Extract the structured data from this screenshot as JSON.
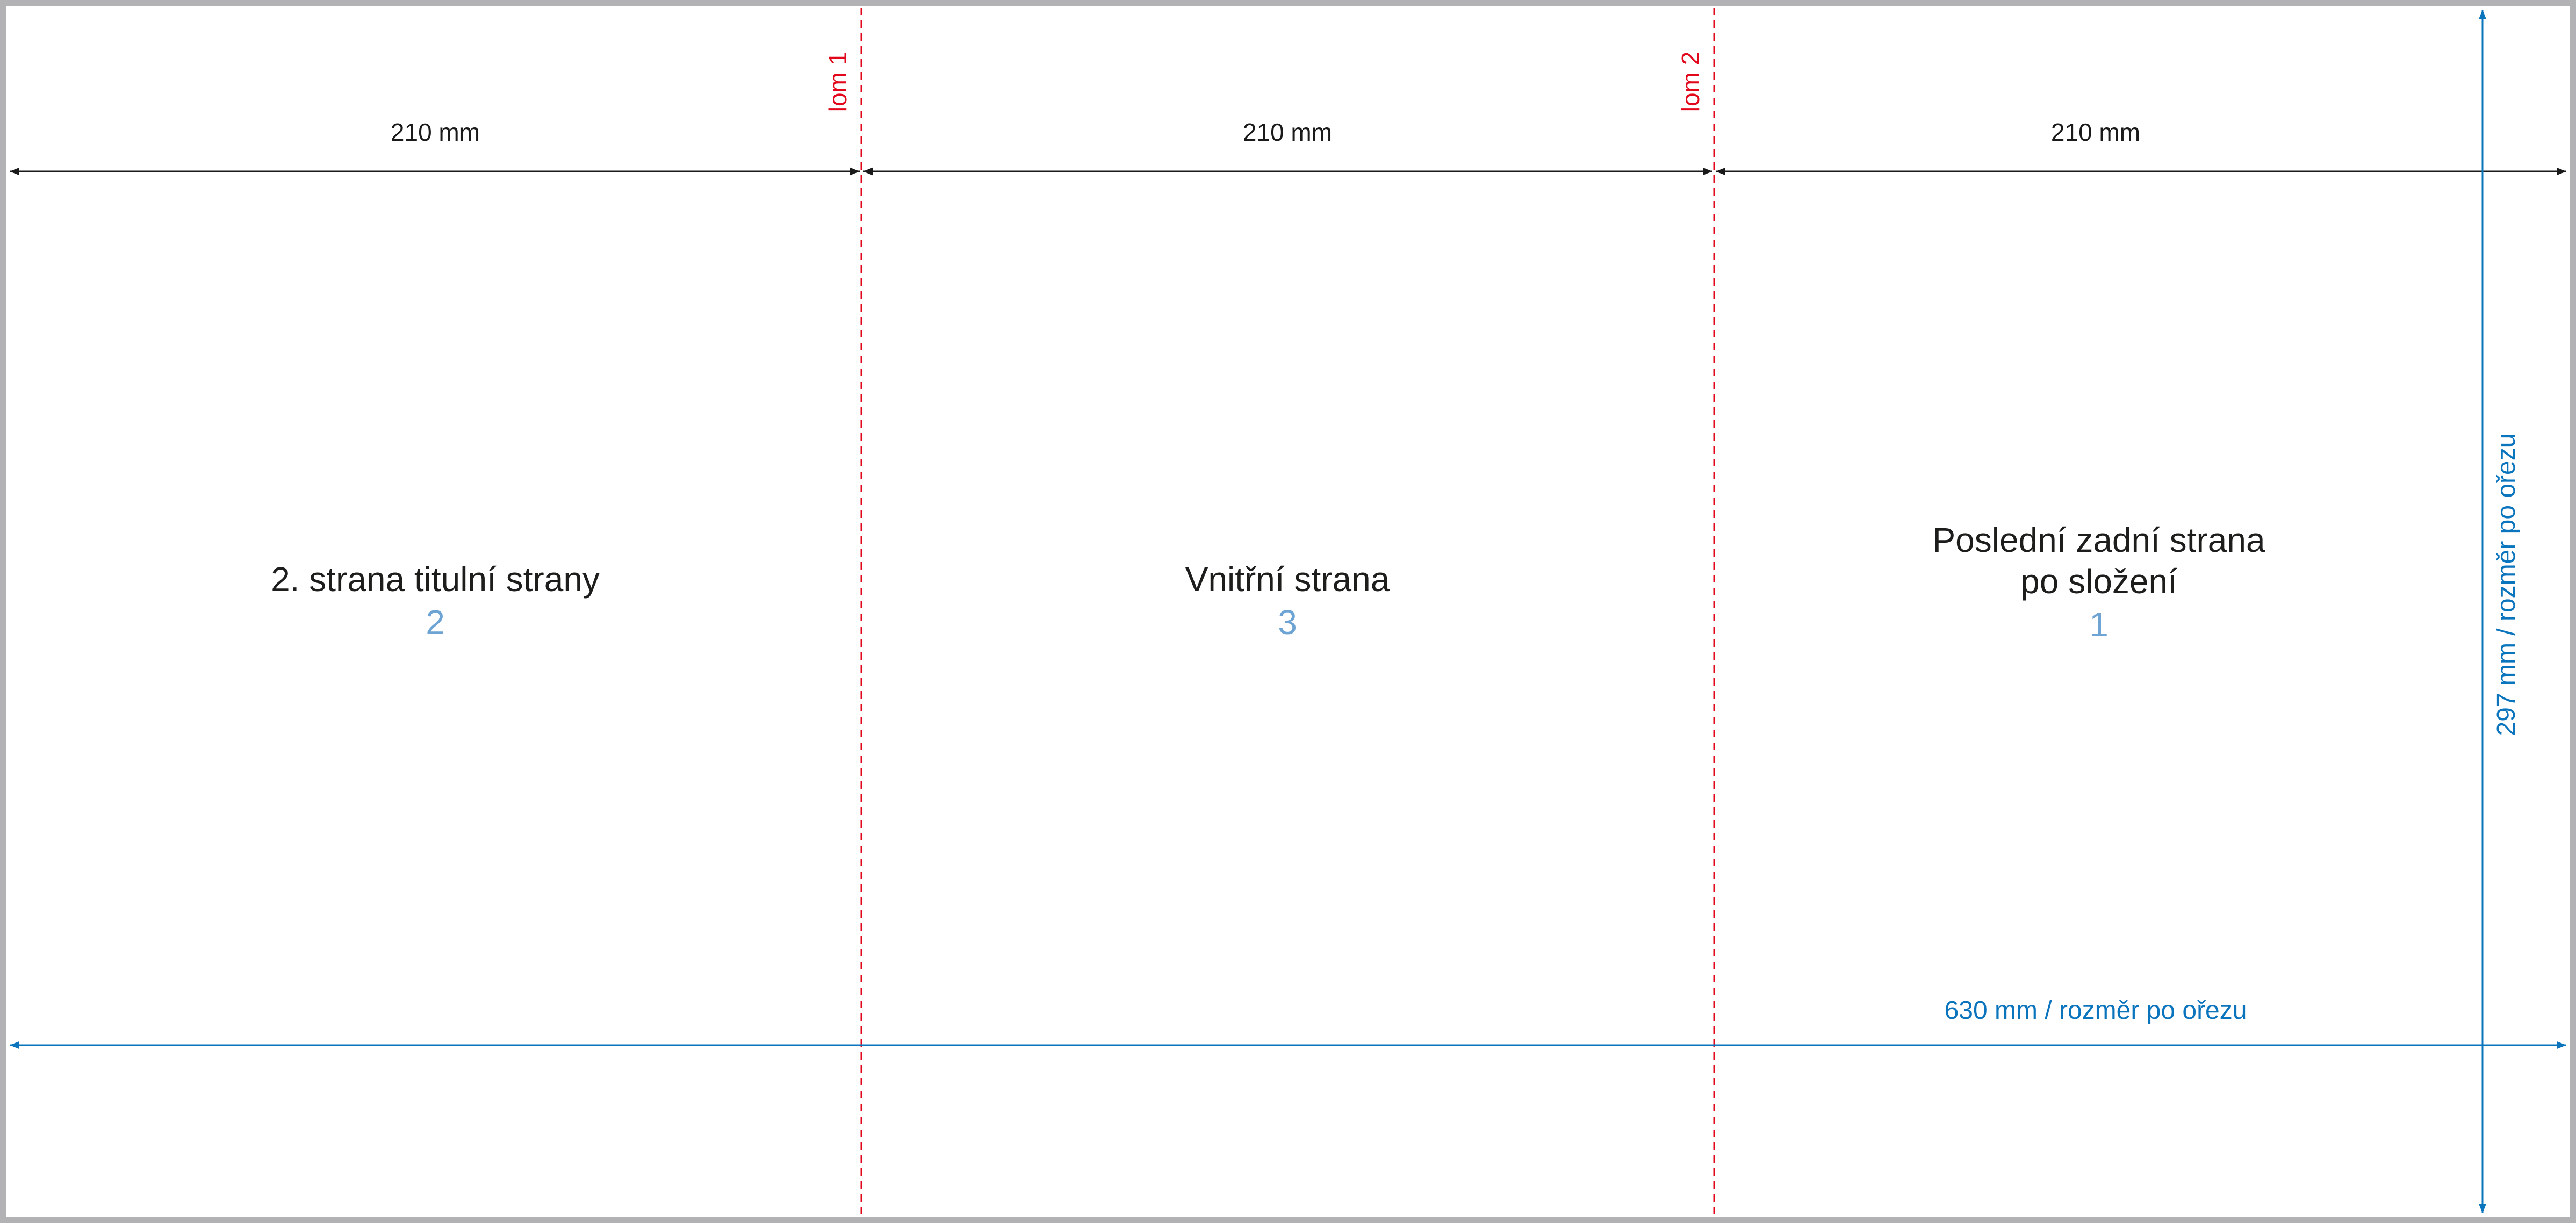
{
  "diagram": {
    "colors": {
      "frame": "#b2b2b4",
      "paper": "#ffffff",
      "dimension_black": "#1a1a1a",
      "fold_red": "#e2071a",
      "trim_blue": "#0a74bd",
      "page_number_blue": "#6ea4d4",
      "text": "#1d1d1b"
    },
    "panels": [
      {
        "title_lines": [
          "2. strana titulní strany"
        ],
        "number": "2",
        "width_label": "210 mm"
      },
      {
        "title_lines": [
          "Vnitřní strana"
        ],
        "number": "3",
        "width_label": "210 mm"
      },
      {
        "title_lines": [
          "Poslední zadní strana",
          "po složení"
        ],
        "number": "1",
        "width_label": "210 mm"
      }
    ],
    "folds": [
      {
        "label": "lom 1"
      },
      {
        "label": "lom 2"
      }
    ],
    "total_width_label": "630 mm / rozměr po ořezu",
    "total_height_label": "297 mm / rozměr po ořezu"
  }
}
